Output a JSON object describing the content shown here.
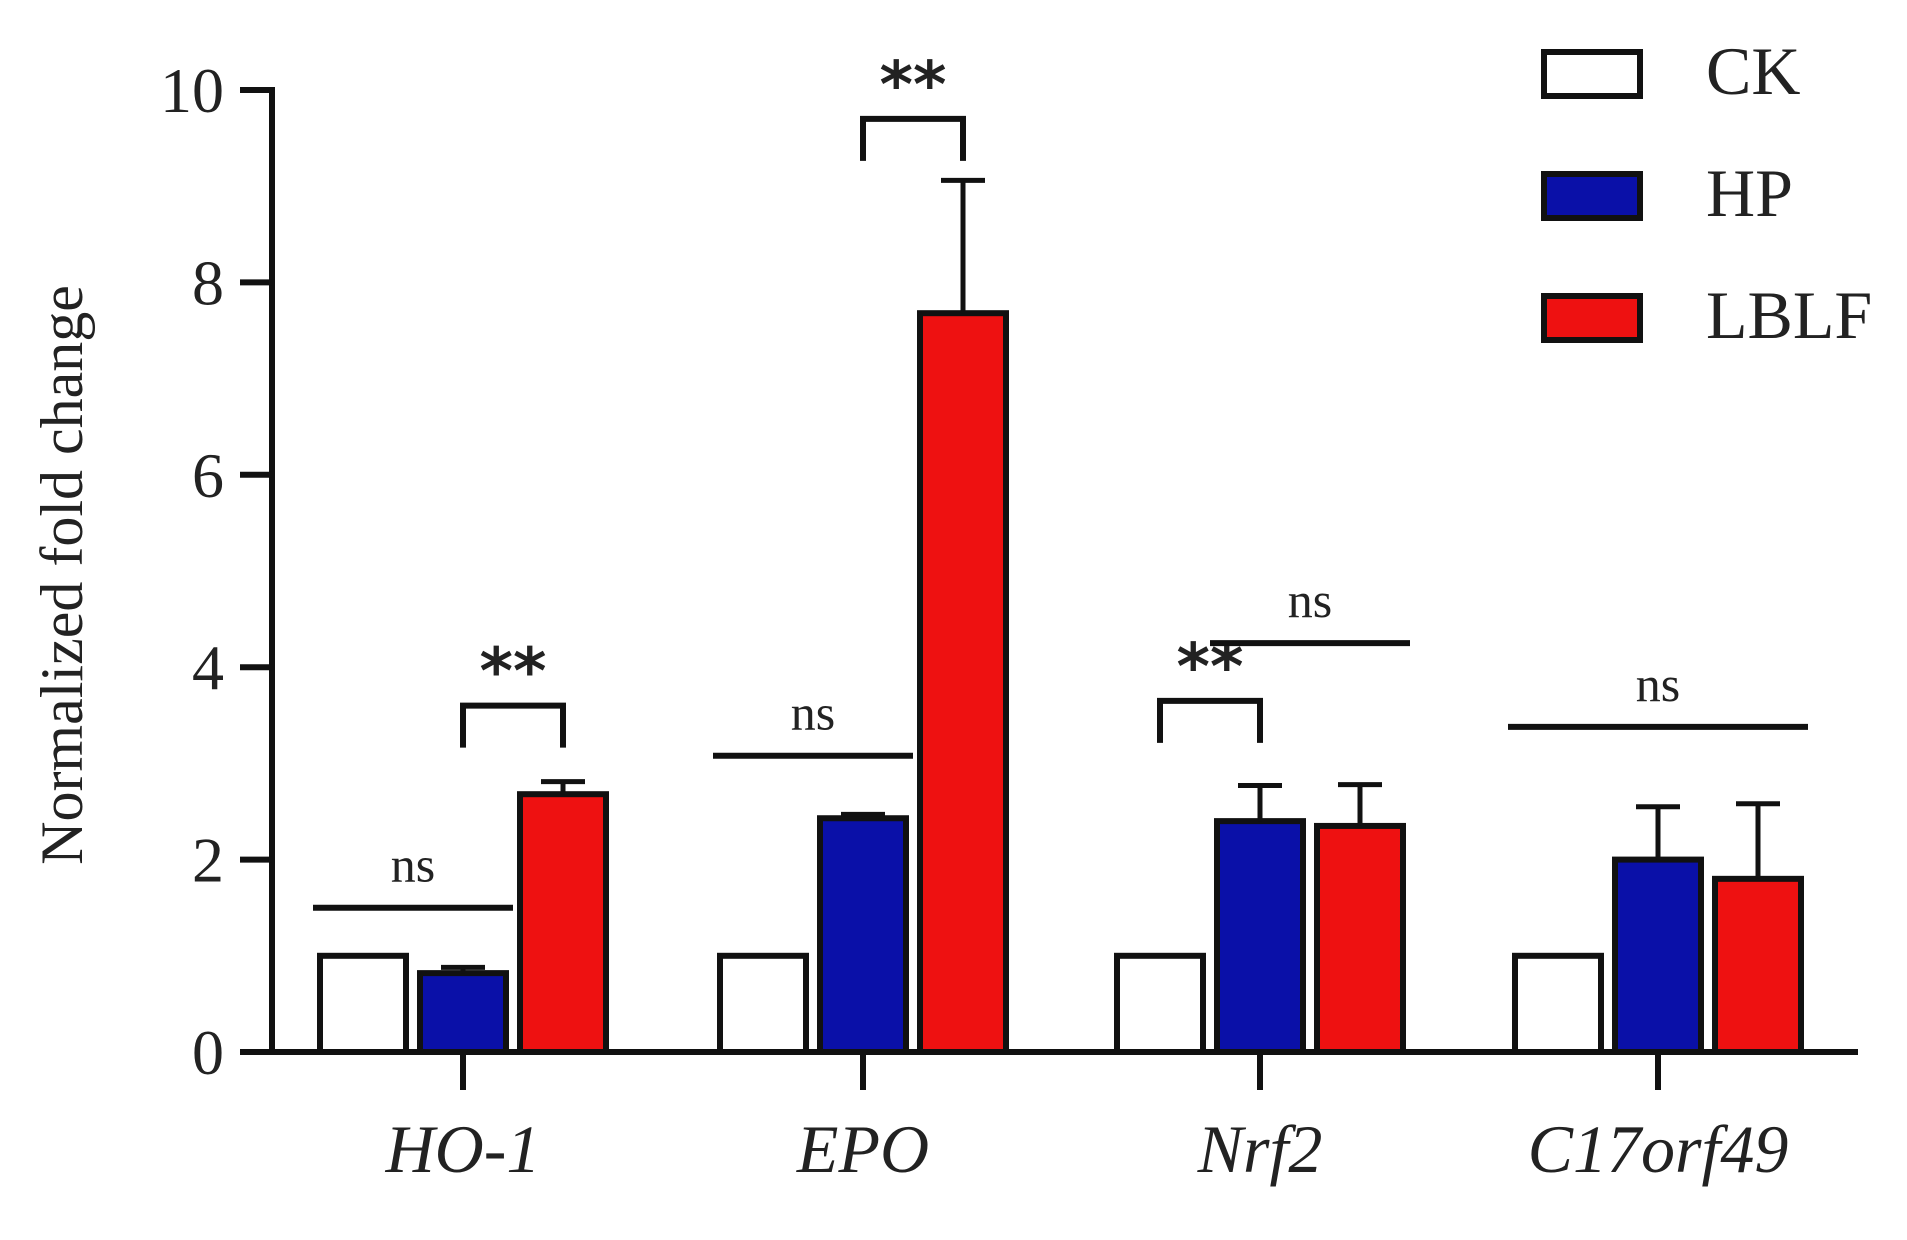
{
  "chart_data": {
    "type": "bar",
    "ylabel": "Normalized fold change",
    "ylim": [
      0,
      10
    ],
    "yticks": [
      "0",
      "2",
      "4",
      "6",
      "8",
      "10"
    ],
    "categories": [
      "HO-1",
      "EPO",
      "Nrf2",
      "C17orf49"
    ],
    "series": [
      {
        "name": "CK",
        "color": "#ffffff",
        "values": [
          1.0,
          1.0,
          1.0,
          1.0
        ],
        "errors": [
          0,
          0,
          0,
          0
        ]
      },
      {
        "name": "HP",
        "color": "#0a10a8",
        "values": [
          0.82,
          2.43,
          2.4,
          2.0
        ],
        "errors": [
          0.06,
          0.04,
          0.37,
          0.55
        ]
      },
      {
        "name": "LBLF",
        "color": "#ee1111",
        "values": [
          2.68,
          7.68,
          2.35,
          1.8
        ],
        "errors": [
          0.13,
          1.38,
          0.43,
          0.78
        ]
      }
    ],
    "legend_position": "top-right",
    "annotations": [
      {
        "label": "ns",
        "style": "line",
        "category": 0,
        "from_series": 0,
        "to_series": 1,
        "y": 1.5
      },
      {
        "label": "**",
        "style": "bracket",
        "category": 0,
        "from_series": 1,
        "to_series": 2,
        "y": 3.6
      },
      {
        "label": "ns",
        "style": "line",
        "category": 1,
        "from_series": 0,
        "to_series": 1,
        "y": 3.08
      },
      {
        "label": "**",
        "style": "bracket",
        "category": 1,
        "from_series": 1,
        "to_series": 2,
        "y": 9.7
      },
      {
        "label": "**",
        "style": "bracket",
        "category": 2,
        "from_series": 0,
        "to_series": 1,
        "y": 3.65
      },
      {
        "label": "ns",
        "style": "line",
        "category": 2,
        "from_series": 1,
        "to_series": 2,
        "y": 4.25
      },
      {
        "label": "ns",
        "style": "line",
        "category": 3,
        "from_series": 0,
        "to_series": 2,
        "y": 3.38
      }
    ]
  }
}
